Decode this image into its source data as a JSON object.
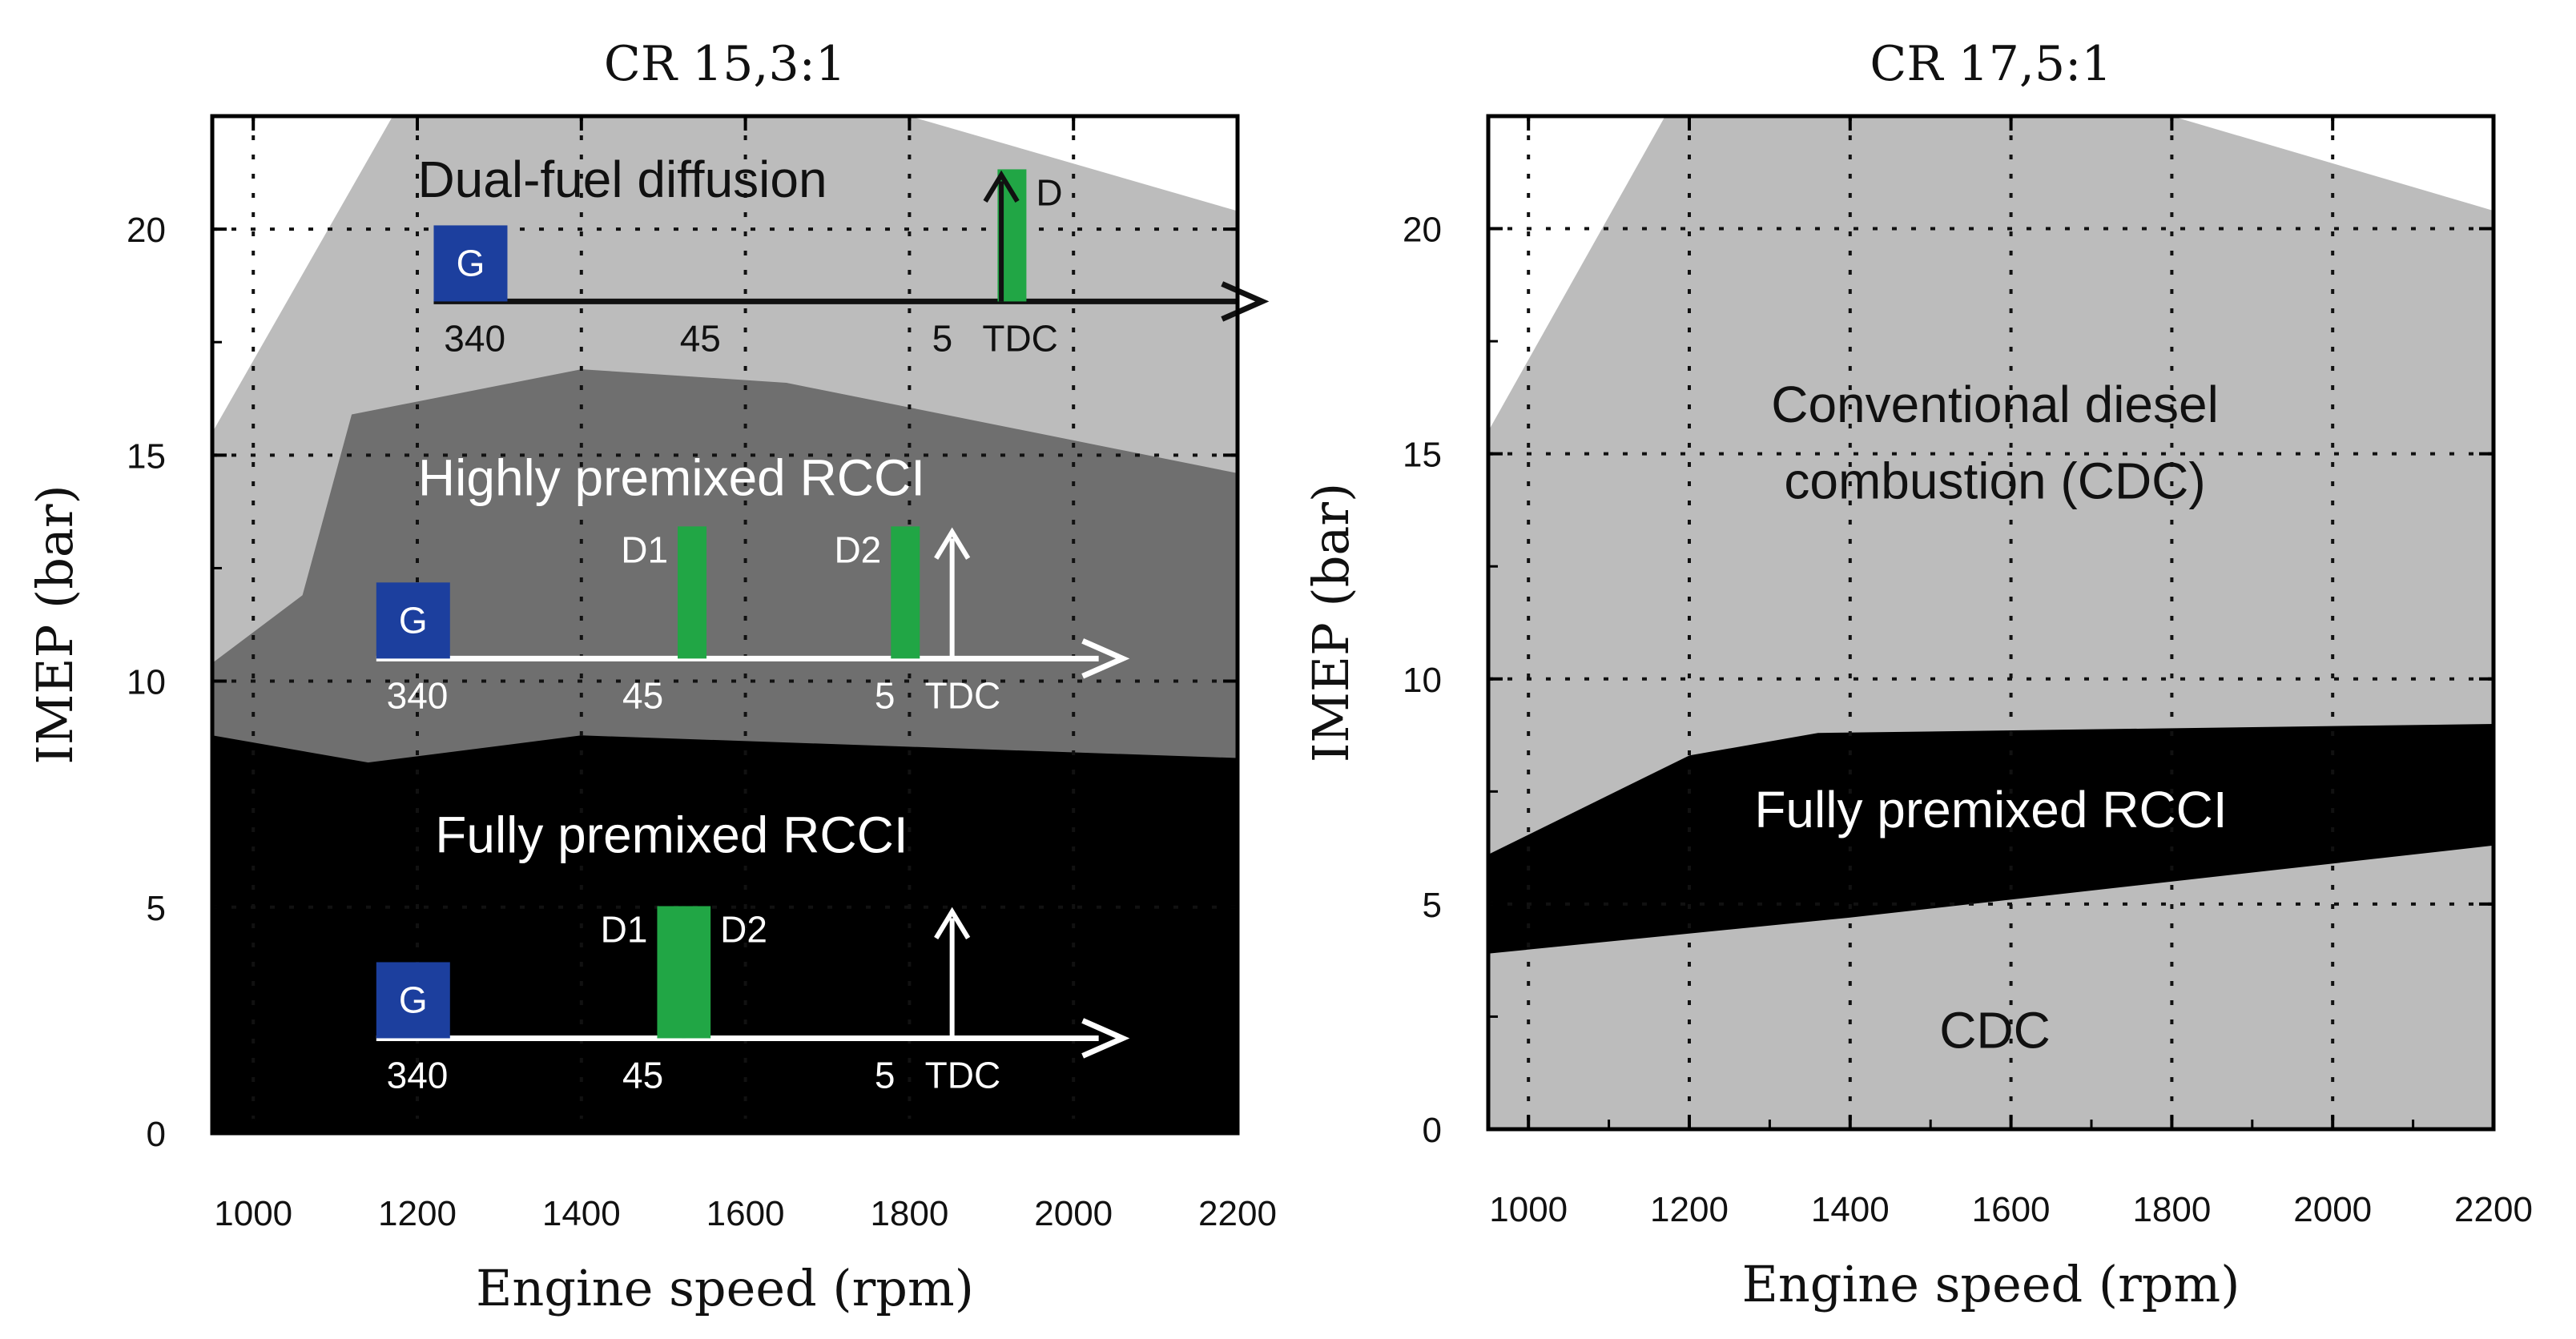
{
  "colors": {
    "light_region": "#bcbcbc",
    "mid_region": "#6f6f6f",
    "dark_region": "#000000",
    "injection_green": "#21a645",
    "gasoline_box": "#1c3f9e",
    "grid": "#111111",
    "axis": "#000000"
  },
  "chart_data": [
    {
      "type": "area",
      "title": "CR 15,3:1",
      "xlabel": "Engine speed (rpm)",
      "ylabel": "IMEP (bar)",
      "xlim": [
        950,
        2200
      ],
      "ylim": [
        0,
        22.5
      ],
      "xticks": [
        1000,
        1200,
        1400,
        1600,
        1800,
        2000,
        2200
      ],
      "yticks": [
        0,
        5,
        10,
        15,
        20
      ],
      "grid": true,
      "regions": [
        {
          "name": "Dual-fuel diffusion",
          "color": "light",
          "boundary": [
            [
              950,
              15.5
            ],
            [
              1170,
              22.5
            ],
            [
              1800,
              22.5
            ],
            [
              2200,
              20.4
            ]
          ]
        },
        {
          "name": "Highly premixed RCCI",
          "color": "mid",
          "boundary": [
            [
              950,
              10.4
            ],
            [
              1060,
              11.9
            ],
            [
              1120,
              15.9
            ],
            [
              1400,
              16.9
            ],
            [
              1650,
              16.6
            ],
            [
              2200,
              14.6
            ]
          ]
        },
        {
          "name": "Fully premixed RCCI",
          "color": "dark",
          "boundary": [
            [
              950,
              8.8
            ],
            [
              1140,
              8.2
            ],
            [
              1400,
              8.8
            ],
            [
              2200,
              8.3
            ]
          ]
        }
      ],
      "region_labels": [
        {
          "text": "Dual-fuel diffusion",
          "at": [
            1450,
            21.1
          ],
          "color": "#111111"
        },
        {
          "text": "Highly premixed RCCI",
          "at": [
            1510,
            14.5
          ],
          "color": "#ffffff"
        },
        {
          "text": "Fully premixed RCCI",
          "at": [
            1510,
            6.6
          ],
          "color": "#ffffff"
        }
      ],
      "injection_schematics": [
        {
          "baseline_y": 18.4,
          "x_start": 1220,
          "x_end": 2230,
          "color": "#111111",
          "gasoline_box": {
            "label": "G",
            "x": 1220
          },
          "pulses": [
            {
              "x": 1925,
              "label": "D",
              "label_side": "right"
            }
          ],
          "tdc_arrow_x": 1912,
          "crank_labels": [
            {
              "text": "340",
              "x": 1270
            },
            {
              "text": "45",
              "x": 1545
            },
            {
              "text": "5",
              "x": 1840
            },
            {
              "text": "TDC",
              "x": 1935
            }
          ]
        },
        {
          "baseline_y": 10.5,
          "x_start": 1150,
          "x_end": 2060,
          "color": "#ffffff",
          "gasoline_box": {
            "label": "G",
            "x": 1150
          },
          "pulses": [
            {
              "x": 1535,
              "label": "D1",
              "label_side": "left"
            },
            {
              "x": 1795,
              "label": "D2",
              "label_side": "left"
            }
          ],
          "tdc_arrow_x": 1852,
          "crank_labels": [
            {
              "text": "340",
              "x": 1200
            },
            {
              "text": "45",
              "x": 1475
            },
            {
              "text": "5",
              "x": 1770
            },
            {
              "text": "TDC",
              "x": 1865
            }
          ]
        },
        {
          "baseline_y": 2.1,
          "x_start": 1150,
          "x_end": 2060,
          "color": "#ffffff",
          "gasoline_box": {
            "label": "G",
            "x": 1150
          },
          "pulses": [
            {
              "x": 1510,
              "label": "D1",
              "label_side": "left"
            },
            {
              "x": 1540,
              "label": "D2",
              "label_side": "right"
            }
          ],
          "tdc_arrow_x": 1852,
          "crank_labels": [
            {
              "text": "340",
              "x": 1200
            },
            {
              "text": "45",
              "x": 1475
            },
            {
              "text": "5",
              "x": 1770
            },
            {
              "text": "TDC",
              "x": 1865
            }
          ]
        }
      ]
    },
    {
      "type": "area",
      "title": "CR 17,5:1",
      "xlabel": "Engine speed (rpm)",
      "ylabel": "IMEP (bar)",
      "xlim": [
        950,
        2200
      ],
      "ylim": [
        0,
        22.5
      ],
      "xticks": [
        1000,
        1200,
        1400,
        1600,
        1800,
        2000,
        2200
      ],
      "yticks": [
        0,
        5,
        10,
        15,
        20
      ],
      "grid": true,
      "regions": [
        {
          "name": "Conventional diesel combustion (CDC)",
          "color": "light",
          "boundary": [
            [
              950,
              15.5
            ],
            [
              1170,
              22.5
            ],
            [
              1800,
              22.5
            ],
            [
              2200,
              20.4
            ]
          ]
        },
        {
          "name": "Fully premixed RCCI",
          "color": "dark",
          "upper": [
            [
              950,
              6.1
            ],
            [
              1200,
              8.3
            ],
            [
              1360,
              8.8
            ],
            [
              2200,
              9.0
            ]
          ],
          "lower": [
            [
              950,
              3.9
            ],
            [
              1400,
              4.7
            ],
            [
              2200,
              6.3
            ]
          ]
        }
      ],
      "region_labels": [
        {
          "text": "Conventional diesel",
          "at": [
            1580,
            16.1
          ],
          "color": "#111111"
        },
        {
          "text": "combustion (CDC)",
          "at": [
            1580,
            14.4
          ],
          "color": "#111111"
        },
        {
          "text": "Fully premixed RCCI",
          "at": [
            1575,
            7.1
          ],
          "color": "#ffffff"
        },
        {
          "text": "CDC",
          "at": [
            1580,
            2.2
          ],
          "color": "#111111"
        }
      ]
    }
  ]
}
